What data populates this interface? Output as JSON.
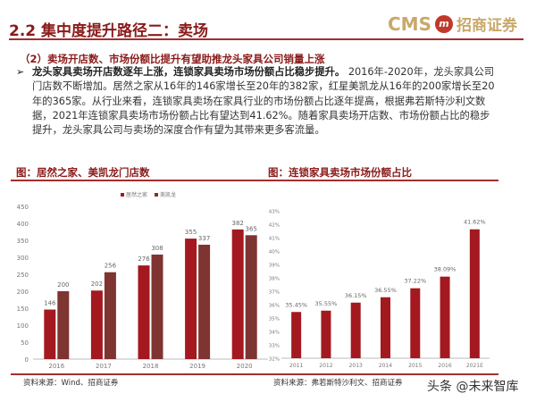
{
  "header": {
    "title": "2.2 集中度提升路径二：卖场",
    "logo_text": "CMS",
    "logo_cn": "招商证券",
    "logo_mark": "m"
  },
  "subtitle": "（2）卖场开店数、市场份额比提升有望助推龙头家具公司销量上涨",
  "paragraph": {
    "bold": "龙头家具卖场开店数逐年上涨，连锁家具卖场市场份额占比稳步提升。",
    "text": "2016年-2020年，龙头家具公司门店数不断增加。居然之家从16年的146家增长至20年的382家，红星美凯龙从16年的200家增长至20年的365家。从行业来看，连锁家具卖场在家具行业的市场份额占比逐年提高，根据弗若斯特沙利文数据，2021年连锁家具卖场市场份额占比有望达到41.62%。随着家具卖场开店数、市场份额占比的稳步提升，龙头家具公司与卖场的深度合作有望为其带来更多客流量。"
  },
  "watermark": "头条 @未来智库",
  "colors": {
    "accent": "#8b1a1a",
    "series1": "#a3191f",
    "series2": "#7e3431"
  },
  "chart_data": [
    {
      "type": "bar",
      "title": "图：居然之家、美凯龙门店数",
      "source": "资料来源：Wind、招商证券",
      "categories": [
        "2016",
        "2017",
        "2018",
        "2019",
        "2020"
      ],
      "series": [
        {
          "name": "居然之家",
          "values": [
            146,
            202,
            276,
            355,
            382
          ]
        },
        {
          "name": "美凯龙",
          "values": [
            200,
            256,
            308,
            337,
            365
          ]
        }
      ],
      "ylim": [
        0,
        450
      ],
      "yticks": [
        0,
        50,
        100,
        150,
        200,
        250,
        300,
        350,
        400,
        450
      ],
      "legend": "top",
      "grid": false
    },
    {
      "type": "bar",
      "title": "图：连锁家具卖场市场份额占比",
      "source": "资料来源：弗若斯特沙利文、招商证券",
      "categories": [
        "2011",
        "2012",
        "2013",
        "2014",
        "2015",
        "2016",
        "2021E"
      ],
      "values": [
        35.45,
        35.55,
        36.15,
        36.55,
        37.22,
        38.09,
        41.62
      ],
      "labels": [
        "35.45%",
        "35.55%",
        "36.15%",
        "36.55%",
        "37.22%",
        "38.09%",
        "41.62%"
      ],
      "ylim": [
        32,
        43
      ],
      "yticks": [
        "32%",
        "33%",
        "34%",
        "35%",
        "36%",
        "37%",
        "38%",
        "39%",
        "40%",
        "41%",
        "42%",
        "43%"
      ],
      "grid": false
    }
  ]
}
